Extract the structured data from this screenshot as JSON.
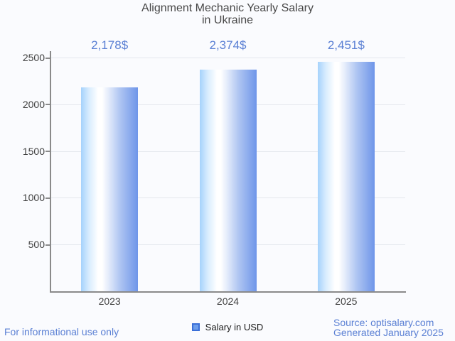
{
  "background_color": "#fafbfe",
  "accent_blue": "#5b80d4",
  "chart_data": {
    "type": "bar",
    "title": "Alignment Mechanic Yearly Salary in Ukraine",
    "title_lines": [
      "Alignment Mechanic Yearly Salary",
      "in Ukraine"
    ],
    "categories": [
      "2023",
      "2024",
      "2025"
    ],
    "values": [
      2178,
      2374,
      2451
    ],
    "value_labels": [
      "2,178$",
      "2,374$",
      "2,451$"
    ],
    "series": [
      {
        "name": "Salary in USD",
        "values": [
          2178,
          2374,
          2451
        ]
      }
    ],
    "ylim": [
      0,
      2500
    ],
    "yticks": [
      500,
      1000,
      1500,
      2000,
      2500
    ],
    "grid": true,
    "legend_position": "bottom",
    "axis_color": "#8a8a8a",
    "gridline_color": "#e4e7ed",
    "label_color": "#3f3f3f",
    "value_label_color": "#5b80d4",
    "bar_gradient_stops": [
      [
        "#a5d2fc",
        "0%"
      ],
      [
        "#d8ecfe",
        "14%"
      ],
      [
        "#ffffff",
        "30%"
      ],
      [
        "#ffffff",
        "37%"
      ],
      [
        "#dfe8fa",
        "50%"
      ],
      [
        "#b0c6f2",
        "68%"
      ],
      [
        "#6e95e9",
        "100%"
      ]
    ]
  },
  "legend": {
    "label": "Salary in USD",
    "swatch_fill": "#6d9eeb",
    "swatch_border": "#3a6fd8"
  },
  "footer": {
    "left_note": "For informational use only",
    "source_line1": "Source: optisalary.com",
    "source_line2": "Generated January 2025"
  }
}
